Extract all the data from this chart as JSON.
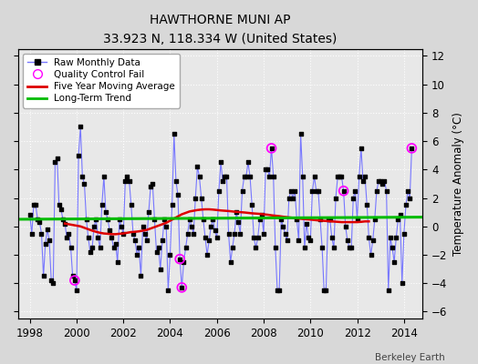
{
  "title": "HAWTHORNE MUNI AP",
  "subtitle": "33.923 N, 118.334 W (United States)",
  "ylabel_right": "Temperature Anomaly (°C)",
  "credit": "Berkeley Earth",
  "xlim": [
    1997.5,
    2014.8
  ],
  "ylim": [
    -6.5,
    12.5
  ],
  "yticks": [
    -6,
    -4,
    -2,
    0,
    2,
    4,
    6,
    8,
    10,
    12
  ],
  "xticks": [
    1998,
    2000,
    2002,
    2004,
    2006,
    2008,
    2010,
    2012,
    2014
  ],
  "bg_color": "#d8d8d8",
  "plot_bg_color": "#e8e8e8",
  "grid_color": "#ffffff",
  "raw_line_color": "#7777ff",
  "raw_marker_color": "#000000",
  "ma_color": "#dd0000",
  "trend_color": "#00bb00",
  "qc_color": "#ff00ff",
  "raw_data": [
    [
      1998.0,
      0.8
    ],
    [
      1998.083,
      -0.5
    ],
    [
      1998.167,
      1.5
    ],
    [
      1998.25,
      1.5
    ],
    [
      1998.333,
      0.5
    ],
    [
      1998.417,
      0.3
    ],
    [
      1998.5,
      -0.5
    ],
    [
      1998.583,
      -3.5
    ],
    [
      1998.667,
      -1.2
    ],
    [
      1998.75,
      -0.2
    ],
    [
      1998.833,
      -1.0
    ],
    [
      1998.917,
      -3.8
    ],
    [
      1999.0,
      -4.0
    ],
    [
      1999.083,
      4.5
    ],
    [
      1999.167,
      4.8
    ],
    [
      1999.25,
      1.5
    ],
    [
      1999.333,
      1.2
    ],
    [
      1999.417,
      0.5
    ],
    [
      1999.5,
      0.2
    ],
    [
      1999.583,
      -0.8
    ],
    [
      1999.667,
      -0.5
    ],
    [
      1999.75,
      -1.5
    ],
    [
      1999.833,
      -3.5
    ],
    [
      1999.917,
      -3.8
    ],
    [
      2000.0,
      -4.5
    ],
    [
      2000.083,
      5.0
    ],
    [
      2000.167,
      7.0
    ],
    [
      2000.25,
      3.5
    ],
    [
      2000.333,
      3.0
    ],
    [
      2000.417,
      0.5
    ],
    [
      2000.5,
      -0.8
    ],
    [
      2000.583,
      -1.8
    ],
    [
      2000.667,
      -1.5
    ],
    [
      2000.75,
      0.0
    ],
    [
      2000.833,
      0.5
    ],
    [
      2000.917,
      -0.8
    ],
    [
      2001.0,
      -1.5
    ],
    [
      2001.083,
      1.5
    ],
    [
      2001.167,
      3.5
    ],
    [
      2001.25,
      1.0
    ],
    [
      2001.333,
      0.5
    ],
    [
      2001.417,
      -0.3
    ],
    [
      2001.5,
      -0.8
    ],
    [
      2001.583,
      -1.5
    ],
    [
      2001.667,
      -1.2
    ],
    [
      2001.75,
      -2.5
    ],
    [
      2001.833,
      0.5
    ],
    [
      2001.917,
      0.0
    ],
    [
      2002.0,
      -0.5
    ],
    [
      2002.083,
      3.2
    ],
    [
      2002.167,
      3.5
    ],
    [
      2002.25,
      3.2
    ],
    [
      2002.333,
      1.5
    ],
    [
      2002.417,
      -0.5
    ],
    [
      2002.5,
      -1.0
    ],
    [
      2002.583,
      -2.0
    ],
    [
      2002.667,
      -1.5
    ],
    [
      2002.75,
      -3.5
    ],
    [
      2002.833,
      0.0
    ],
    [
      2002.917,
      -0.5
    ],
    [
      2003.0,
      -1.0
    ],
    [
      2003.083,
      1.0
    ],
    [
      2003.167,
      2.8
    ],
    [
      2003.25,
      3.0
    ],
    [
      2003.333,
      0.5
    ],
    [
      2003.417,
      -1.8
    ],
    [
      2003.5,
      -1.5
    ],
    [
      2003.583,
      -3.0
    ],
    [
      2003.667,
      -1.0
    ],
    [
      2003.75,
      0.5
    ],
    [
      2003.833,
      0.0
    ],
    [
      2003.917,
      -4.5
    ],
    [
      2004.0,
      -2.0
    ],
    [
      2004.083,
      1.5
    ],
    [
      2004.167,
      6.5
    ],
    [
      2004.25,
      3.2
    ],
    [
      2004.333,
      2.2
    ],
    [
      2004.417,
      -2.3
    ],
    [
      2004.5,
      -4.3
    ],
    [
      2004.583,
      -2.5
    ],
    [
      2004.667,
      -1.5
    ],
    [
      2004.75,
      -0.5
    ],
    [
      2004.833,
      0.5
    ],
    [
      2004.917,
      0.0
    ],
    [
      2005.0,
      -0.5
    ],
    [
      2005.083,
      2.0
    ],
    [
      2005.167,
      4.2
    ],
    [
      2005.25,
      3.5
    ],
    [
      2005.333,
      2.0
    ],
    [
      2005.417,
      0.5
    ],
    [
      2005.5,
      -0.8
    ],
    [
      2005.583,
      -2.0
    ],
    [
      2005.667,
      -1.0
    ],
    [
      2005.75,
      0.0
    ],
    [
      2005.833,
      0.5
    ],
    [
      2005.917,
      -0.3
    ],
    [
      2006.0,
      -0.8
    ],
    [
      2006.083,
      2.5
    ],
    [
      2006.167,
      4.5
    ],
    [
      2006.25,
      3.2
    ],
    [
      2006.333,
      3.5
    ],
    [
      2006.417,
      3.5
    ],
    [
      2006.5,
      -0.5
    ],
    [
      2006.583,
      -2.5
    ],
    [
      2006.667,
      -1.5
    ],
    [
      2006.75,
      -0.5
    ],
    [
      2006.833,
      1.0
    ],
    [
      2006.917,
      0.3
    ],
    [
      2007.0,
      -0.5
    ],
    [
      2007.083,
      2.5
    ],
    [
      2007.167,
      3.5
    ],
    [
      2007.25,
      3.5
    ],
    [
      2007.333,
      4.5
    ],
    [
      2007.417,
      3.5
    ],
    [
      2007.5,
      1.5
    ],
    [
      2007.583,
      -0.8
    ],
    [
      2007.667,
      -1.5
    ],
    [
      2007.75,
      -0.8
    ],
    [
      2007.833,
      0.5
    ],
    [
      2007.917,
      0.8
    ],
    [
      2008.0,
      -0.5
    ],
    [
      2008.083,
      4.0
    ],
    [
      2008.167,
      4.0
    ],
    [
      2008.25,
      3.5
    ],
    [
      2008.333,
      5.5
    ],
    [
      2008.417,
      3.5
    ],
    [
      2008.5,
      -1.5
    ],
    [
      2008.583,
      -4.5
    ],
    [
      2008.667,
      -4.5
    ],
    [
      2008.75,
      0.5
    ],
    [
      2008.833,
      0.0
    ],
    [
      2008.917,
      -0.5
    ],
    [
      2009.0,
      -1.0
    ],
    [
      2009.083,
      2.0
    ],
    [
      2009.167,
      2.5
    ],
    [
      2009.25,
      2.0
    ],
    [
      2009.333,
      2.5
    ],
    [
      2009.417,
      0.5
    ],
    [
      2009.5,
      -1.0
    ],
    [
      2009.583,
      6.5
    ],
    [
      2009.667,
      3.5
    ],
    [
      2009.75,
      -1.5
    ],
    [
      2009.833,
      0.2
    ],
    [
      2009.917,
      -0.8
    ],
    [
      2010.0,
      -1.0
    ],
    [
      2010.083,
      2.5
    ],
    [
      2010.167,
      3.5
    ],
    [
      2010.25,
      2.5
    ],
    [
      2010.333,
      2.5
    ],
    [
      2010.417,
      0.5
    ],
    [
      2010.5,
      -1.5
    ],
    [
      2010.583,
      -4.5
    ],
    [
      2010.667,
      -4.5
    ],
    [
      2010.75,
      0.5
    ],
    [
      2010.833,
      0.5
    ],
    [
      2010.917,
      -0.8
    ],
    [
      2011.0,
      -1.5
    ],
    [
      2011.083,
      2.0
    ],
    [
      2011.167,
      3.5
    ],
    [
      2011.25,
      3.5
    ],
    [
      2011.333,
      3.5
    ],
    [
      2011.417,
      2.5
    ],
    [
      2011.5,
      0.0
    ],
    [
      2011.583,
      -1.0
    ],
    [
      2011.667,
      -1.5
    ],
    [
      2011.75,
      -1.5
    ],
    [
      2011.833,
      2.0
    ],
    [
      2011.917,
      2.5
    ],
    [
      2012.0,
      0.5
    ],
    [
      2012.083,
      3.5
    ],
    [
      2012.167,
      5.5
    ],
    [
      2012.25,
      3.2
    ],
    [
      2012.333,
      3.5
    ],
    [
      2012.417,
      1.5
    ],
    [
      2012.5,
      -0.8
    ],
    [
      2012.583,
      -2.0
    ],
    [
      2012.667,
      -1.0
    ],
    [
      2012.75,
      0.5
    ],
    [
      2012.833,
      2.5
    ],
    [
      2012.917,
      3.2
    ],
    [
      2013.0,
      3.2
    ],
    [
      2013.083,
      3.0
    ],
    [
      2013.167,
      3.2
    ],
    [
      2013.25,
      2.5
    ],
    [
      2013.333,
      -4.5
    ],
    [
      2013.417,
      -0.8
    ],
    [
      2013.5,
      -1.5
    ],
    [
      2013.583,
      -2.5
    ],
    [
      2013.667,
      -0.8
    ],
    [
      2013.75,
      0.5
    ],
    [
      2013.833,
      0.8
    ],
    [
      2013.917,
      -4.0
    ],
    [
      2014.0,
      -0.5
    ],
    [
      2014.083,
      1.5
    ],
    [
      2014.167,
      2.5
    ],
    [
      2014.25,
      2.0
    ],
    [
      2014.333,
      5.5
    ]
  ],
  "qc_fail_points": [
    [
      1999.917,
      -3.8
    ],
    [
      2004.417,
      -2.3
    ],
    [
      2004.5,
      -4.3
    ],
    [
      2008.333,
      5.5
    ],
    [
      2011.417,
      2.5
    ],
    [
      2014.333,
      5.5
    ]
  ],
  "moving_avg": [
    [
      1999.5,
      0.2
    ],
    [
      1999.667,
      0.15
    ],
    [
      1999.833,
      0.1
    ],
    [
      2000.0,
      0.05
    ],
    [
      2000.167,
      0.0
    ],
    [
      2000.333,
      -0.1
    ],
    [
      2000.5,
      -0.2
    ],
    [
      2000.667,
      -0.3
    ],
    [
      2000.833,
      -0.38
    ],
    [
      2001.0,
      -0.45
    ],
    [
      2001.167,
      -0.5
    ],
    [
      2001.333,
      -0.52
    ],
    [
      2001.5,
      -0.55
    ],
    [
      2001.667,
      -0.55
    ],
    [
      2001.833,
      -0.52
    ],
    [
      2002.0,
      -0.5
    ],
    [
      2002.167,
      -0.45
    ],
    [
      2002.333,
      -0.4
    ],
    [
      2002.5,
      -0.38
    ],
    [
      2002.667,
      -0.35
    ],
    [
      2002.833,
      -0.3
    ],
    [
      2003.0,
      -0.25
    ],
    [
      2003.167,
      -0.15
    ],
    [
      2003.333,
      -0.05
    ],
    [
      2003.5,
      0.05
    ],
    [
      2003.667,
      0.15
    ],
    [
      2003.833,
      0.25
    ],
    [
      2004.0,
      0.4
    ],
    [
      2004.167,
      0.55
    ],
    [
      2004.333,
      0.7
    ],
    [
      2004.5,
      0.85
    ],
    [
      2004.667,
      0.95
    ],
    [
      2004.833,
      1.05
    ],
    [
      2005.0,
      1.1
    ],
    [
      2005.167,
      1.15
    ],
    [
      2005.333,
      1.18
    ],
    [
      2005.5,
      1.2
    ],
    [
      2005.667,
      1.2
    ],
    [
      2005.833,
      1.18
    ],
    [
      2006.0,
      1.15
    ],
    [
      2006.167,
      1.12
    ],
    [
      2006.333,
      1.1
    ],
    [
      2006.5,
      1.08
    ],
    [
      2006.667,
      1.05
    ],
    [
      2006.833,
      1.02
    ],
    [
      2007.0,
      1.0
    ],
    [
      2007.167,
      0.98
    ],
    [
      2007.333,
      0.95
    ],
    [
      2007.5,
      0.92
    ],
    [
      2007.667,
      0.9
    ],
    [
      2007.833,
      0.88
    ],
    [
      2008.0,
      0.85
    ],
    [
      2008.167,
      0.82
    ],
    [
      2008.333,
      0.78
    ],
    [
      2008.5,
      0.75
    ],
    [
      2008.667,
      0.72
    ],
    [
      2008.833,
      0.68
    ],
    [
      2009.0,
      0.65
    ],
    [
      2009.167,
      0.62
    ],
    [
      2009.333,
      0.58
    ],
    [
      2009.5,
      0.55
    ],
    [
      2009.667,
      0.52
    ],
    [
      2009.833,
      0.5
    ],
    [
      2010.0,
      0.48
    ],
    [
      2010.167,
      0.45
    ],
    [
      2010.333,
      0.42
    ],
    [
      2010.5,
      0.4
    ],
    [
      2010.667,
      0.38
    ],
    [
      2010.833,
      0.36
    ],
    [
      2011.0,
      0.34
    ],
    [
      2011.167,
      0.32
    ],
    [
      2011.333,
      0.3
    ],
    [
      2011.5,
      0.3
    ],
    [
      2011.667,
      0.3
    ],
    [
      2011.833,
      0.3
    ],
    [
      2012.0,
      0.3
    ],
    [
      2012.167,
      0.32
    ],
    [
      2012.333,
      0.35
    ],
    [
      2012.5,
      0.35
    ]
  ],
  "trend_x": [
    1997.5,
    2014.8
  ],
  "trend_y": [
    0.5,
    0.65
  ]
}
